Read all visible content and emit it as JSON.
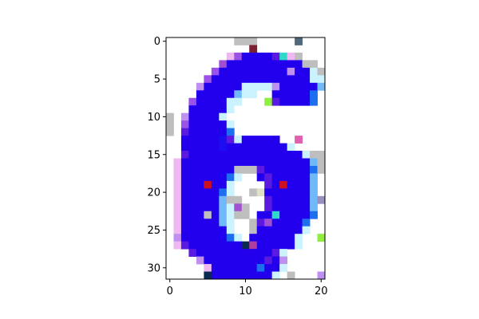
{
  "chart_data": {
    "type": "heatmap",
    "title": "",
    "xlabel": "",
    "ylabel": "",
    "grid": false,
    "legend": "none",
    "xlim": [
      -0.5,
      20.5
    ],
    "ylim": [
      31.5,
      -0.5
    ],
    "x_ticks": [
      0,
      10,
      20
    ],
    "x_tick_labels": [
      "0",
      "10",
      "20"
    ],
    "y_ticks": [
      0,
      5,
      10,
      15,
      20,
      25,
      30
    ],
    "y_tick_labels": [
      "0",
      "5",
      "10",
      "15",
      "20",
      "25",
      "30"
    ],
    "columns": 21,
    "rows": 32,
    "background_color": "#ffffff",
    "palette": {
      "B": "#2200ee",
      "b": "#1c0ef0",
      "V": "#5a1ae0",
      "P": "#9a52e8",
      "L": "#c090f0",
      "K": "#f0b8f0",
      "C": "#1e6ef0",
      "c": "#70b8f8",
      "W": "#cbf2ff",
      "G": "#bebebe",
      "M": "#e060b0",
      "R": "#cc1020",
      "T": "#30d8c8",
      "N": "#7a2030",
      "D": "#0a2a50",
      "E": "#50687a",
      "Y": "#a050d0",
      "A": "#90ee40",
      "S": "#e0e0c8",
      "O": "#b040a0",
      "H": "#6a8090",
      "U": "#9a90c0"
    },
    "rows_data": [
      ".........GGG.....E...",
      "...........N.........",
      "........KPBBBBVTKG...",
      ".......YBBBBBBBBBBGG.",
      "......PBBBBBBBBBLBBWG",
      ".....PBBBBBBBBBBBBBWW",
      "....LBBBBBWWWWLBBBBBc",
      "....BBBBBcWW..BBBBBC.",
      "...PBBBBWW...AVBBBBC.",
      "...BBBBBW............",
      "G.LBBBBW.............",
      "G.PBBBBBW............",
      "G.VBBBBBC............",
      "..BBBBBbVWBBBBB..M...",
      "..BBBBBbBBBBBBBBW....",
      "..VBBBBBBBBBBBBBBBWGGG",
      ".KBBBBBBBBBBBBBBBBBcGG",
      ".KBBBBBBBGGGVBBBBBBCG",
      ".KBBBBBBCW..BVBBBBBc.",
      ".KBBBRBBW....VBRBBBc.",
      ".KBBBBBCW..GSBBBBBBc.",
      ".KBBBBBcGG...VBBBBBcU",
      ".KBBBBBcWYG..VBBBBBc.",
      ".KBBBGBcWGG.BBTBBBBC.",
      ".KBBBBBcW..GVYBBBBC..",
      ".KBBBBBBW..GBBBBBBW..",
      ".LBBBBBBCW.BBBBBBW..A",
      ".KVBBBBBBBDOBBBBBW...",
      "...VBBBBBBBBBBVW.....",
      "....LBBBBBBBBVBL.....",
      ".....KBBBBBBCBBW.....",
      ".....DBBBBBBBBW.G...L"
    ]
  }
}
